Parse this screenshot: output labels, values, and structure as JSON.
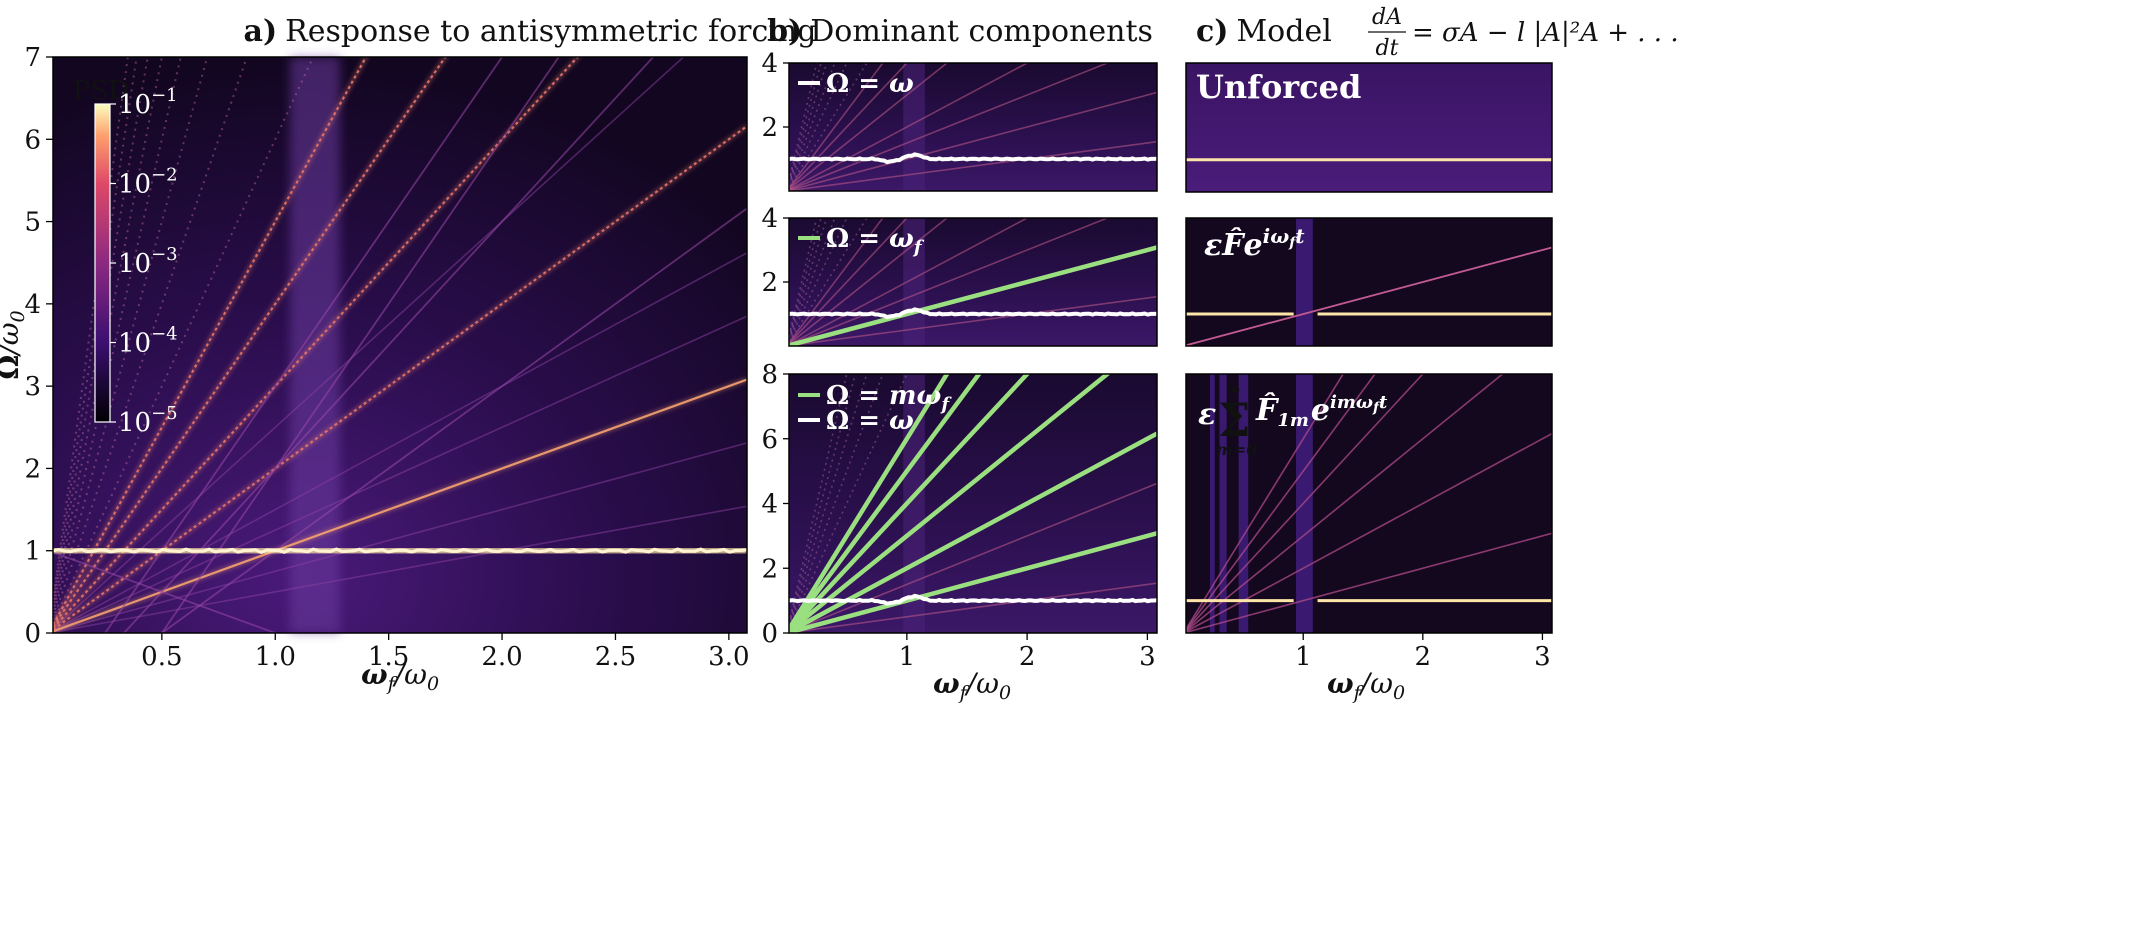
{
  "colors": {
    "bg_dark": "#12061f",
    "bg_mid": "#3a1464",
    "line_bright": "#fde5a8",
    "line_mid": "#e5766a",
    "green": "#9be080",
    "white": "#ffffff"
  },
  "chart_data": [
    {
      "type": "heatmap",
      "title": "a) Response to antisymmetric forcing",
      "title_prefix": "a)",
      "title_text": "Response to antisymmetric forcing",
      "xlabel": "ω_f/ω_0",
      "ylabel": "Ω/ω_0",
      "xlim": [
        0.02,
        3.08
      ],
      "ylim": [
        0,
        7
      ],
      "xticks": [
        0.5,
        1.0,
        1.5,
        2.0,
        2.5,
        3.0
      ],
      "xtick_labels": [
        "0.5",
        "1.0",
        "1.5",
        "2.0",
        "2.5",
        "3.0"
      ],
      "yticks": [
        0,
        1,
        2,
        3,
        4,
        5,
        6,
        7
      ],
      "ytick_labels": [
        "0",
        "1",
        "2",
        "3",
        "4",
        "5",
        "6",
        "7"
      ],
      "colorbar": {
        "label": "PSD",
        "scale": "log",
        "range": [
          1e-05,
          0.1
        ],
        "ticks": [
          {
            "base": "10",
            "exp": "−1"
          },
          {
            "base": "10",
            "exp": "−2"
          },
          {
            "base": "10",
            "exp": "−3"
          },
          {
            "base": "10",
            "exp": "−4"
          },
          {
            "base": "10",
            "exp": "−5"
          }
        ]
      },
      "harmonics_m": [
        1,
        2,
        3,
        4,
        5
      ],
      "natural_frequency_line": 1.0
    },
    {
      "type": "heatmap",
      "title": "b) Dominant components",
      "title_prefix": "b)",
      "title_text": "Dominant components",
      "xlabel": "ω_f/ω_0",
      "xlim": [
        0.02,
        3.08
      ],
      "subplots": [
        {
          "ylim": [
            0,
            4
          ],
          "yticks": [
            2,
            4
          ],
          "ytick_labels": [
            "2",
            "4"
          ],
          "legend": [
            {
              "color": "white",
              "label": "Ω = ω"
            }
          ]
        },
        {
          "ylim": [
            0,
            4
          ],
          "yticks": [
            2,
            4
          ],
          "ytick_labels": [
            "2",
            "4"
          ],
          "legend": [
            {
              "color": "green",
              "label": "Ω = ω_f"
            }
          ]
        },
        {
          "ylim": [
            0,
            8
          ],
          "yticks": [
            0,
            2,
            4,
            6,
            8
          ],
          "ytick_labels": [
            "0",
            "2",
            "4",
            "6",
            "8"
          ],
          "legend": [
            {
              "color": "green",
              "label": "Ω = mω_f"
            },
            {
              "color": "white",
              "label": "Ω = ω"
            }
          ]
        }
      ],
      "xticks": [
        1,
        2,
        3
      ],
      "xtick_labels": [
        "1",
        "2",
        "3"
      ],
      "green_lines_m": [
        1,
        2,
        3,
        4,
        5,
        6
      ]
    },
    {
      "type": "heatmap",
      "title": "c) Model dA/dt = σA − l|A|²A + ...",
      "title_prefix": "c)",
      "title_text": "Model",
      "equation": {
        "numerator": "dA",
        "denominator": "dt",
        "rhs": "= σA − l |A|²A + . . ."
      },
      "xlabel": "ω_f/ω_0",
      "xlim": [
        0.02,
        3.08
      ],
      "xticks": [
        1,
        2,
        3
      ],
      "xtick_labels": [
        "1",
        "2",
        "3"
      ],
      "subplots": [
        {
          "label": "Unforced"
        },
        {
          "label": "εF̂e^{iω_f t}"
        },
        {
          "label": "ε Σ_{m=0}^{∞} F̂_{1m} e^{imω_f t}"
        }
      ]
    }
  ]
}
